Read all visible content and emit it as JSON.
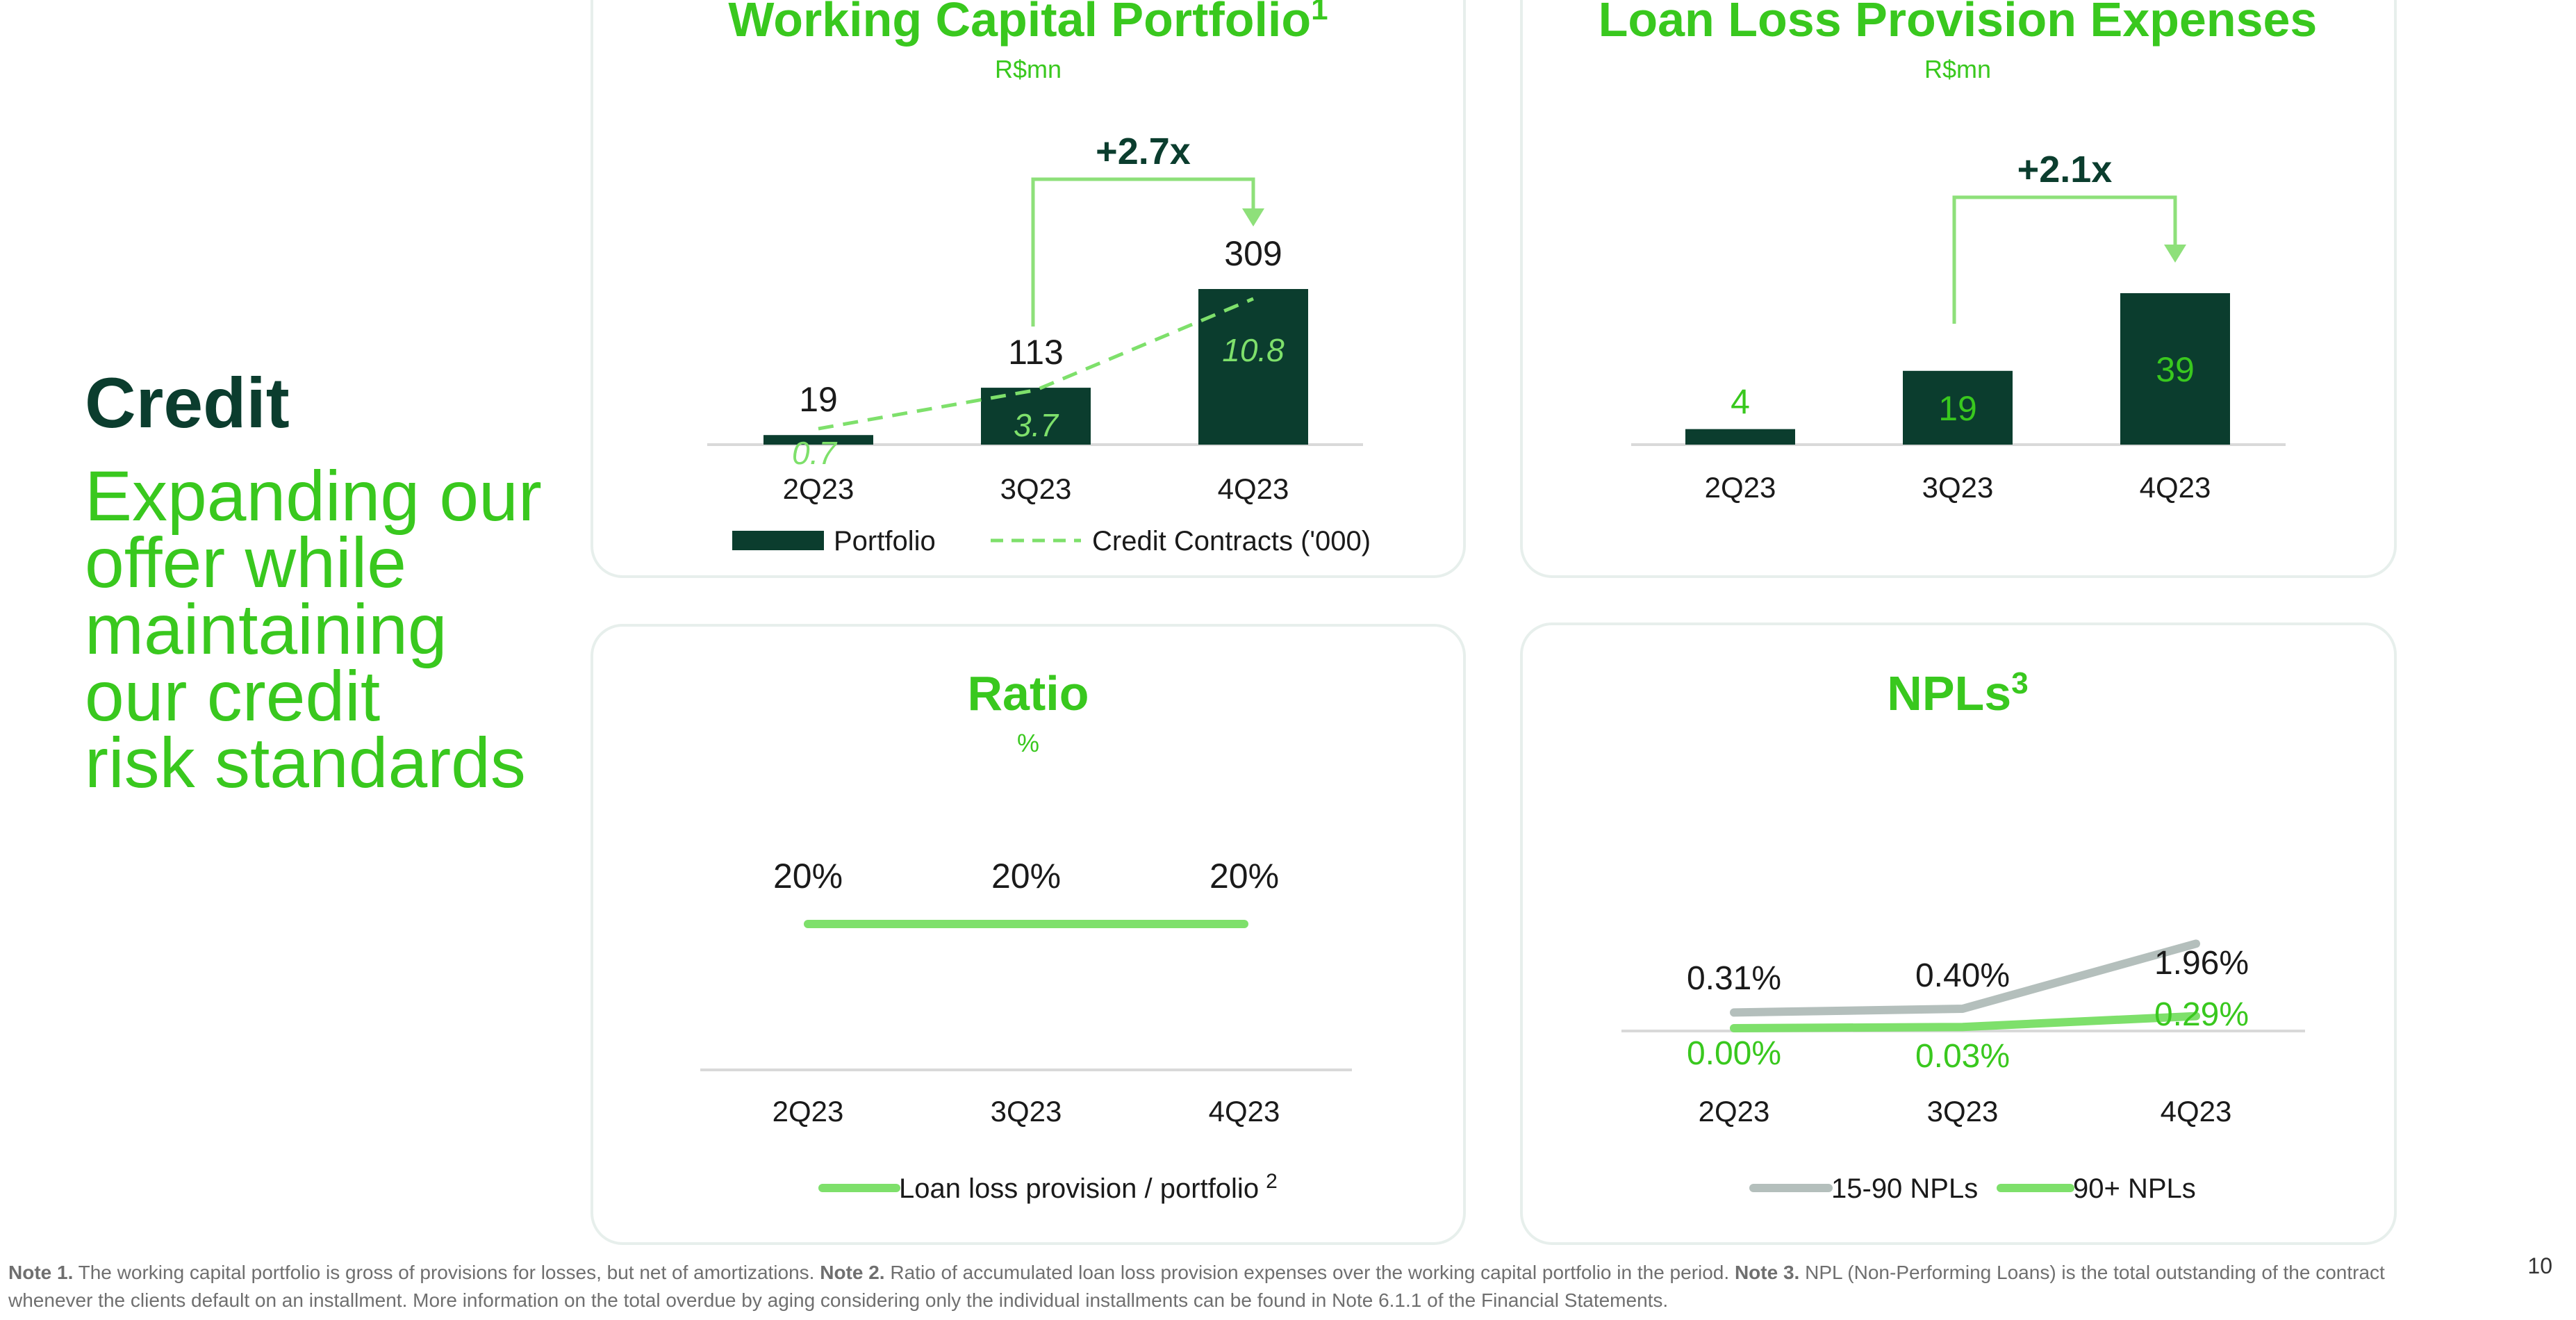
{
  "slide": {
    "section_title": "Credit",
    "section_subtitle": "Expanding our\noffer while\nmaintaining\nour credit\nrisk standards",
    "page_number": "10",
    "footnotes": [
      {
        "label": "Note 1.",
        "text": " The working capital portfolio is gross of provisions for losses, but net of amortizations. "
      },
      {
        "label": "Note 2.",
        "text": " Ratio of accumulated loan loss provision expenses over the working capital portfolio in the period. "
      },
      {
        "label": "Note 3.",
        "text": " NPL (Non-Performing Loans) is the total outstanding of the contract whenever the clients default on an installment. More information on the total overdue by aging considering only the individual installments can be found in Note 6.1.1 of the Financial Statements."
      }
    ]
  },
  "colors": {
    "dark_green": "#0b3d2e",
    "bright_green": "#39c81e",
    "light_green": "#7ee06b",
    "gray": "#b4bfbc",
    "axis": "#d9d9d9",
    "growth_arrow": "#8ee07a"
  },
  "chart_data": [
    {
      "id": "working-capital",
      "type": "bar",
      "title": "Working Capital Portfolio",
      "title_superscript": "1",
      "subtitle": "R$mn",
      "categories": [
        "2Q23",
        "3Q23",
        "4Q23"
      ],
      "series": [
        {
          "name": "Portfolio",
          "values": [
            19,
            113,
            309
          ],
          "color": "#0b3d2e"
        },
        {
          "name": "Credit Contracts ('000)",
          "values": [
            0.7,
            3.7,
            10.8
          ],
          "style": "dashed-line",
          "color": "#7ee06b"
        }
      ],
      "value_labels": [
        "19",
        "113",
        "309"
      ],
      "secondary_labels": [
        "0.7",
        "3.7",
        "10.8"
      ],
      "growth_annotation": {
        "text": "+2.7x",
        "from": "3Q23",
        "to": "4Q23"
      },
      "legend_position": "bottom"
    },
    {
      "id": "loan-loss-provision",
      "type": "bar",
      "title": "Loan Loss Provision Expenses",
      "subtitle": "R$mn",
      "categories": [
        "2Q23",
        "3Q23",
        "4Q23"
      ],
      "series": [
        {
          "values": [
            4,
            19,
            39
          ],
          "color": "#0b3d2e"
        }
      ],
      "value_labels": [
        "4",
        "19",
        "39"
      ],
      "growth_annotation": {
        "text": "+2.1x",
        "from": "3Q23",
        "to": "4Q23"
      }
    },
    {
      "id": "ratio",
      "type": "line",
      "title": "Ratio",
      "subtitle": "%",
      "categories": [
        "2Q23",
        "3Q23",
        "4Q23"
      ],
      "series": [
        {
          "name": "Loan loss provision / portfolio",
          "name_superscript": "2",
          "values": [
            20,
            20,
            20
          ],
          "color": "#7ee06b"
        }
      ],
      "value_labels": [
        "20%",
        "20%",
        "20%"
      ],
      "legend_position": "bottom"
    },
    {
      "id": "npls",
      "type": "line",
      "title": "NPLs",
      "title_superscript": "3",
      "categories": [
        "2Q23",
        "3Q23",
        "4Q23"
      ],
      "series": [
        {
          "name": "15-90 NPLs",
          "values": [
            0.31,
            0.4,
            1.96
          ],
          "labels": [
            "0.31%",
            "0.40%",
            "1.96%"
          ],
          "color": "#b4bfbc"
        },
        {
          "name": "90+ NPLs",
          "values": [
            0.0,
            0.03,
            0.29
          ],
          "labels": [
            "0.00%",
            "0.03%",
            "0.29%"
          ],
          "color": "#7ee06b"
        }
      ],
      "legend_position": "bottom"
    }
  ]
}
